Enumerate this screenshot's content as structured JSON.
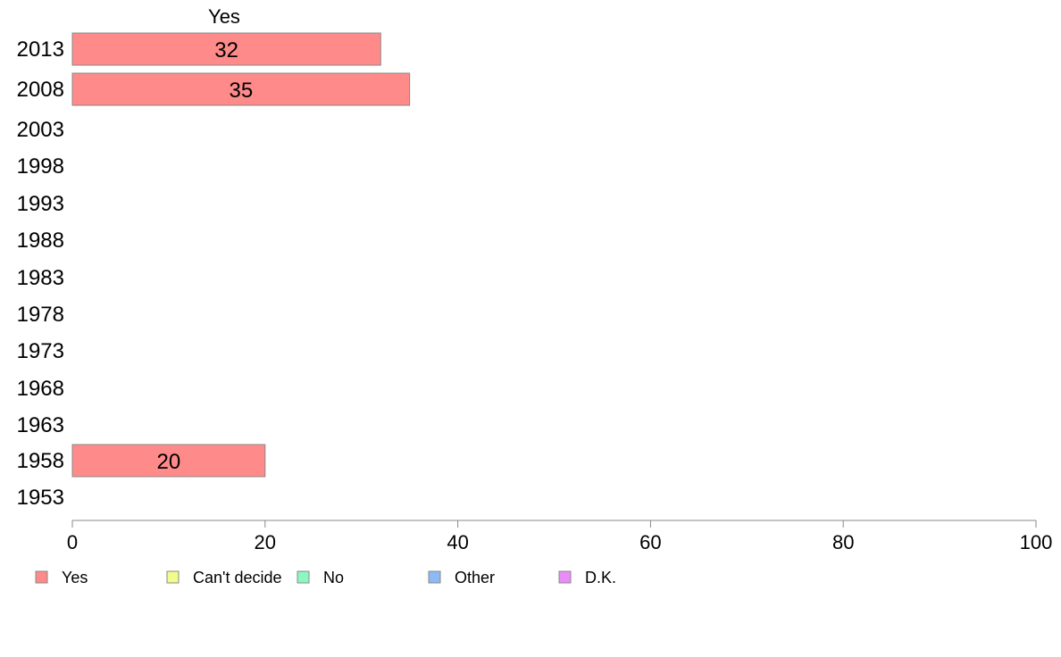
{
  "chart_data": {
    "type": "bar",
    "orientation": "horizontal",
    "column_header": "Yes",
    "categories": [
      "2013",
      "2008",
      "2003",
      "1998",
      "1993",
      "1988",
      "1983",
      "1978",
      "1973",
      "1968",
      "1963",
      "1958",
      "1953"
    ],
    "series": [
      {
        "name": "Yes",
        "color": "#ff8a8a",
        "values": [
          32,
          35,
          null,
          null,
          null,
          null,
          null,
          null,
          null,
          null,
          null,
          20,
          null
        ],
        "labels": [
          "32",
          "35",
          "",
          "",
          "",
          "",
          "",
          "",
          "",
          "",
          "",
          "20",
          ""
        ]
      }
    ],
    "xlim": [
      0,
      100
    ],
    "xticks": [
      "0",
      "20",
      "40",
      "60",
      "80",
      "100"
    ],
    "xtick_values": [
      0,
      20,
      40,
      60,
      80,
      100
    ],
    "grid": false,
    "legend_position": "bottom",
    "legend": [
      {
        "label": "Yes",
        "color": "#ff8a8a"
      },
      {
        "label": "Can't decide",
        "color": "#f2fb8c"
      },
      {
        "label": "No",
        "color": "#8cf7c0"
      },
      {
        "label": "Other",
        "color": "#8cbaf7"
      },
      {
        "label": "D.K.",
        "color": "#ea8cf7"
      }
    ],
    "axis_color": "#888888",
    "bar_border_color": "#888888"
  }
}
